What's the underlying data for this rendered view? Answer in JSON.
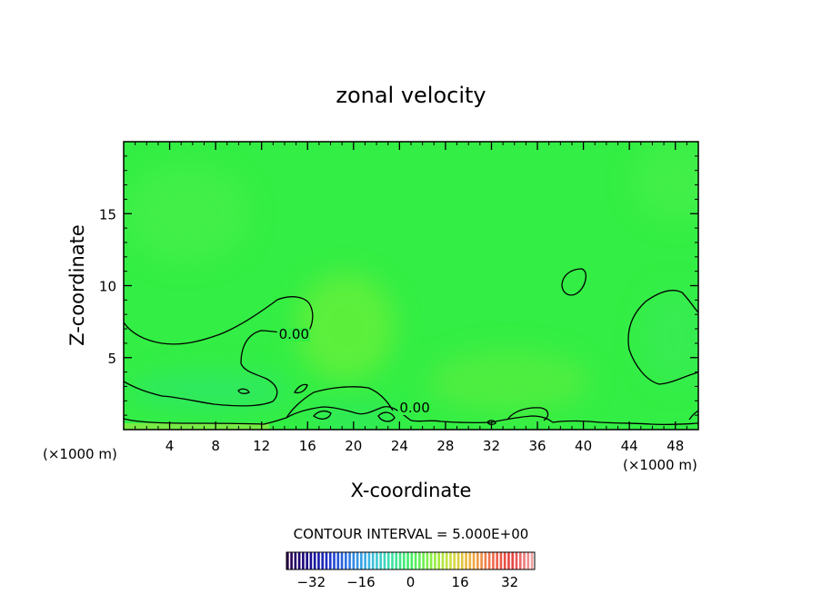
{
  "chart_data": {
    "type": "heatmap",
    "title": "zonal velocity",
    "xlabel": "X-coordinate",
    "ylabel": "Z-coordinate",
    "x_unit_left": "(×1000 m)",
    "x_unit_right": "(×1000 m)",
    "xlim": [
      0,
      50
    ],
    "ylim": [
      0,
      20
    ],
    "x_ticks": [
      4,
      8,
      12,
      16,
      20,
      24,
      28,
      32,
      36,
      40,
      44,
      48
    ],
    "y_ticks": [
      5,
      10,
      15
    ],
    "contour_labels": [
      {
        "text": "0.00",
        "x": 13.5,
        "z": 6.3
      },
      {
        "text": "0.00",
        "x": 24.0,
        "z": 1.2
      }
    ],
    "contour_interval_text": "CONTOUR INTERVAL = 5.000E+00",
    "colorbar": {
      "range": [
        -40,
        40
      ],
      "ticks": [
        -32,
        -16,
        0,
        16,
        32
      ],
      "colors": [
        "#2a004a",
        "#1a0a8a",
        "#1f33c8",
        "#2f7ae6",
        "#3fb8e8",
        "#3ee0b0",
        "#44ee66",
        "#88f044",
        "#d0e040",
        "#f0b040",
        "#f07050",
        "#e84040",
        "#f0a0a0"
      ]
    },
    "field_color": "#33ee44",
    "contour_color": "#000000"
  }
}
